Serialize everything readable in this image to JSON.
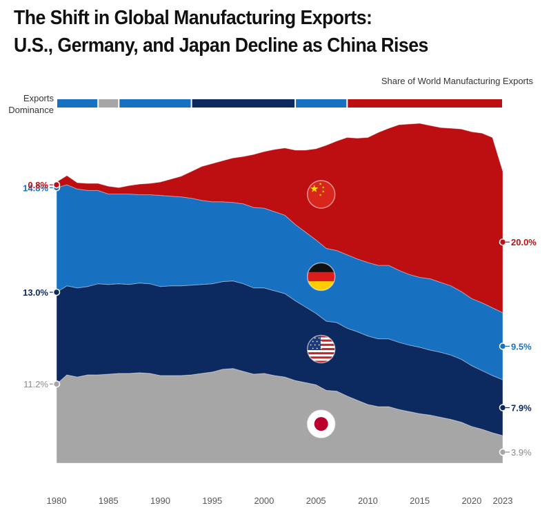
{
  "title_line1": "The Shift in Global Manufacturing Exports:",
  "title_line2": "U.S., Germany, and Japan Decline as China Rises",
  "chart_data": {
    "type": "area",
    "subtype": "stacked",
    "subtitle": "Share of World Manufacturing Exports",
    "dominance_label": "Exports Dominance",
    "dominance_label_lines": [
      "Exports",
      "Dominance"
    ],
    "x": [
      1980,
      1981,
      1982,
      1983,
      1984,
      1985,
      1986,
      1987,
      1988,
      1989,
      1990,
      1991,
      1992,
      1993,
      1994,
      1995,
      1996,
      1997,
      1998,
      1999,
      2000,
      2001,
      2002,
      2003,
      2004,
      2005,
      2006,
      2007,
      2008,
      2009,
      2010,
      2011,
      2012,
      2013,
      2014,
      2015,
      2016,
      2017,
      2018,
      2019,
      2020,
      2021,
      2022,
      2023
    ],
    "x_ticks": [
      1980,
      1985,
      1990,
      1995,
      2000,
      2005,
      2010,
      2015,
      2020,
      2023
    ],
    "y_unit": "%",
    "series": [
      {
        "name": "Japan",
        "color": "#a6a6a6",
        "values": [
          11.2,
          12.5,
          12.2,
          12.5,
          12.5,
          12.6,
          12.7,
          12.7,
          12.8,
          12.7,
          12.4,
          12.4,
          12.4,
          12.5,
          12.7,
          12.9,
          13.3,
          13.4,
          13.0,
          12.6,
          12.7,
          12.4,
          12.2,
          11.7,
          11.4,
          11.1,
          10.3,
          10.2,
          9.5,
          8.9,
          8.3,
          8.0,
          8.0,
          7.6,
          7.3,
          7.0,
          6.8,
          6.5,
          6.2,
          5.8,
          5.2,
          4.8,
          4.3,
          3.9
        ]
      },
      {
        "name": "United States",
        "color": "#0d2a60",
        "values": [
          13.0,
          12.6,
          12.6,
          12.5,
          12.9,
          12.7,
          12.7,
          12.6,
          12.7,
          12.7,
          12.6,
          12.7,
          12.7,
          12.7,
          12.6,
          12.5,
          12.4,
          12.4,
          12.4,
          12.2,
          12.1,
          12.0,
          11.8,
          11.3,
          10.7,
          10.1,
          9.8,
          9.7,
          9.6,
          9.7,
          9.7,
          9.6,
          9.6,
          9.5,
          9.4,
          9.4,
          9.2,
          9.2,
          9.1,
          8.9,
          8.6,
          8.3,
          8.1,
          7.9
        ]
      },
      {
        "name": "Germany",
        "color": "#1871c0",
        "values": [
          14.8,
          14.3,
          14.0,
          13.6,
          13.2,
          12.8,
          12.7,
          12.8,
          12.5,
          12.6,
          12.9,
          12.7,
          12.6,
          12.3,
          11.9,
          11.6,
          11.3,
          11.1,
          11.3,
          11.4,
          11.3,
          11.2,
          11.1,
          10.8,
          10.6,
          10.4,
          10.3,
          10.2,
          10.4,
          10.3,
          10.4,
          10.4,
          10.4,
          10.2,
          10.0,
          9.9,
          10.1,
          9.9,
          9.8,
          9.6,
          9.5,
          9.6,
          9.6,
          9.5
        ]
      },
      {
        "name": "China",
        "color": "#bd0e12",
        "values": [
          0.8,
          1.3,
          0.9,
          1.0,
          1.0,
          1.1,
          0.9,
          1.2,
          1.5,
          1.6,
          1.9,
          2.4,
          2.9,
          3.8,
          4.8,
          5.4,
          5.8,
          6.3,
          6.7,
          7.5,
          8.0,
          8.8,
          9.5,
          10.5,
          11.6,
          12.9,
          14.6,
          15.5,
          16.6,
          17.1,
          17.7,
          18.8,
          19.4,
          20.6,
          21.3,
          21.8,
          21.7,
          21.9,
          22.3,
          23.0,
          23.6,
          24.0,
          24.1,
          20.0
        ]
      }
    ],
    "start_labels": {
      "China": "0.8%",
      "Germany": "14.8%",
      "United States": "13.0%",
      "Japan": "11.2%"
    },
    "end_labels": {
      "China": "20.0%",
      "Germany": "9.5%",
      "United States": "7.9%",
      "Japan": "3.9%"
    },
    "dominance_bar": [
      {
        "country": "Germany",
        "from": 1980,
        "to": 1984,
        "color": "#1871c0"
      },
      {
        "country": "Japan",
        "from": 1984,
        "to": 1986,
        "color": "#a6a6a6"
      },
      {
        "country": "Germany",
        "from": 1986,
        "to": 1993,
        "color": "#1871c0"
      },
      {
        "country": "United States",
        "from": 1993,
        "to": 2003,
        "color": "#0d2a60"
      },
      {
        "country": "Germany",
        "from": 2003,
        "to": 2008,
        "color": "#1871c0"
      },
      {
        "country": "China",
        "from": 2008,
        "to": 2023,
        "color": "#bd0e12"
      }
    ],
    "flags": [
      {
        "country": "China",
        "icon": "china-flag-icon"
      },
      {
        "country": "Germany",
        "icon": "germany-flag-icon"
      },
      {
        "country": "United States",
        "icon": "usa-flag-icon"
      },
      {
        "country": "Japan",
        "icon": "japan-flag-icon"
      }
    ],
    "grid": false,
    "legend": "none"
  }
}
